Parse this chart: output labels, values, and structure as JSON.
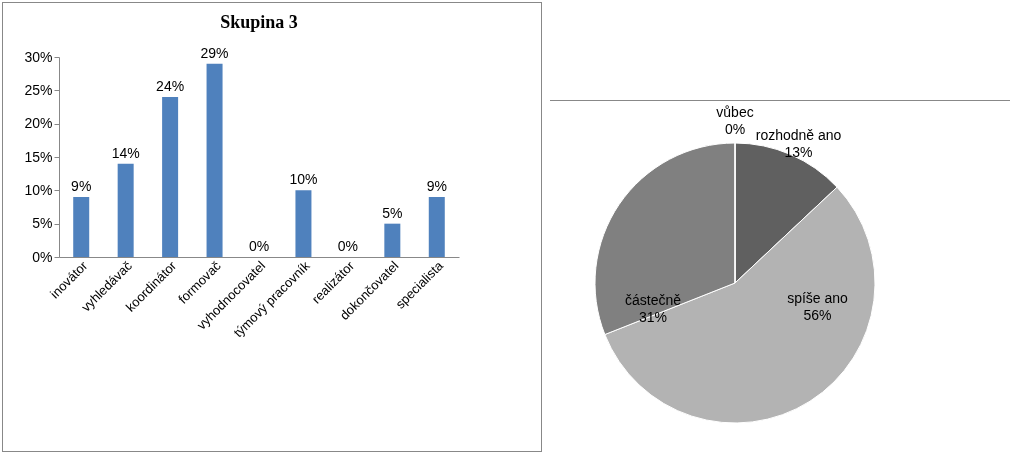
{
  "chart_data": [
    {
      "type": "bar",
      "title": "Skupina 3",
      "categories": [
        "inovátor",
        "vyhledávač",
        "koordinátor",
        "formovač",
        "vyhodnocovatel",
        "týmový pracovník",
        "realizátor",
        "dokončovatel",
        "specialista"
      ],
      "values": [
        9,
        14,
        24,
        29,
        0,
        10,
        0,
        5,
        9
      ],
      "value_labels": [
        "9%",
        "14%",
        "24%",
        "29%",
        "0%",
        "10%",
        "0%",
        "5%",
        "9%"
      ],
      "color": "#4f81bd",
      "ylim": [
        0,
        30
      ],
      "yticks": [
        {
          "value": 0,
          "label": "0%"
        },
        {
          "value": 5,
          "label": "5%"
        },
        {
          "value": 10,
          "label": "10%"
        },
        {
          "value": 15,
          "label": "15%"
        },
        {
          "value": 20,
          "label": "20%"
        },
        {
          "value": 25,
          "label": "25%"
        },
        {
          "value": 30,
          "label": "30%"
        }
      ]
    },
    {
      "type": "pie",
      "categories": [
        "rozhodně ano",
        "spíše ano",
        "částečně",
        "vůbec"
      ],
      "values": [
        13,
        56,
        31,
        0
      ],
      "value_labels": [
        "13%",
        "56%",
        "31%",
        "0%"
      ],
      "colors": [
        "#606060",
        "#b3b3b3",
        "#808080",
        "#4a4a4a"
      ]
    }
  ]
}
